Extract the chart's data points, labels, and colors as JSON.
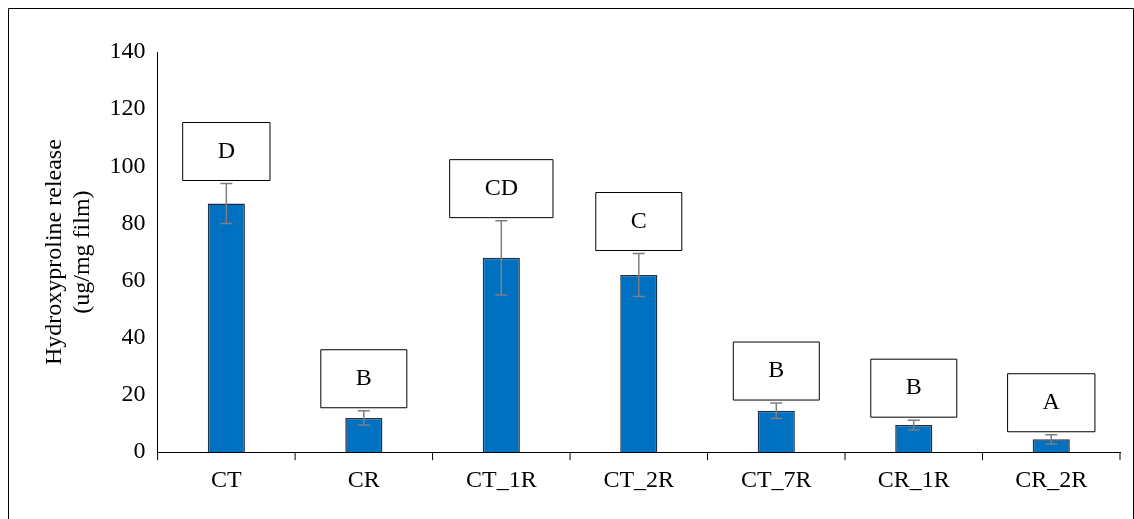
{
  "chart_data": {
    "type": "bar",
    "ylabel": "Hydroxyproline release\n(ug/mg film)",
    "categories": [
      "CT",
      "CR",
      "CT_1R",
      "CT_2R",
      "CT_7R",
      "CR_1R",
      "CR_2R"
    ],
    "values": [
      87,
      12,
      68,
      62,
      14.5,
      9.5,
      4.5
    ],
    "errors": [
      7,
      2.5,
      13,
      7.5,
      2.7,
      1.7,
      1.6
    ],
    "color": "#0070c0",
    "ylim": [
      0,
      140
    ],
    "yticks": [
      0,
      20,
      40,
      60,
      80,
      100,
      120,
      140
    ],
    "grid": false,
    "legend": false,
    "annotations": [
      "D",
      "B",
      "CD",
      "C",
      "B",
      "B",
      "A"
    ]
  }
}
